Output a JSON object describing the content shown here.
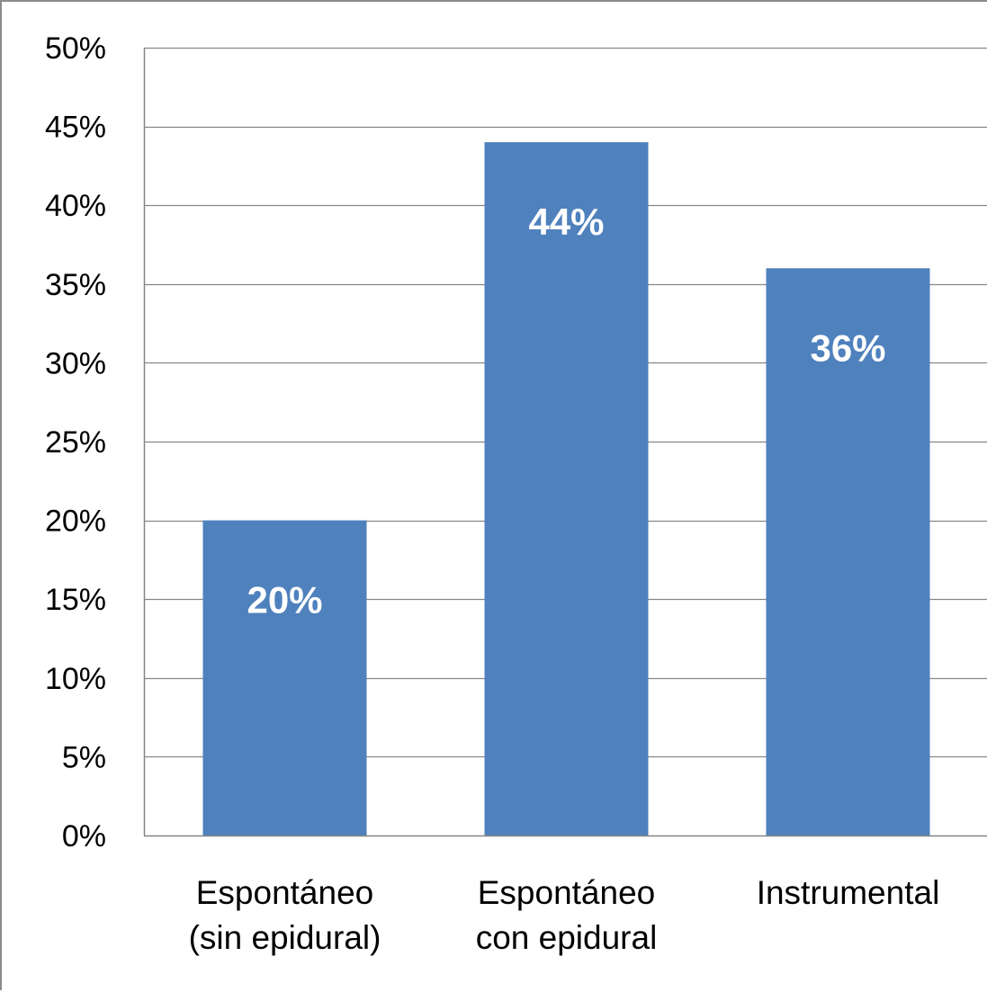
{
  "chart_data": {
    "type": "bar",
    "categories": [
      [
        "Espontáneo",
        "(sin epidural)"
      ],
      [
        "Espontáneo",
        "con epidural"
      ],
      [
        "Instrumental"
      ]
    ],
    "values": [
      20,
      44,
      36
    ],
    "data_labels": [
      "20%",
      "44%",
      "36%"
    ],
    "ylim": [
      0,
      50
    ],
    "yticks": [
      0,
      5,
      10,
      15,
      20,
      25,
      30,
      35,
      40,
      45,
      50
    ],
    "ytick_labels": [
      "0%",
      "5%",
      "10%",
      "15%",
      "20%",
      "25%",
      "30%",
      "35%",
      "40%",
      "45%",
      "50%"
    ],
    "grid": true,
    "legend": "none",
    "colors": {
      "bar": "#4f81bd",
      "grid": "#868686",
      "axis": "#868686"
    }
  }
}
